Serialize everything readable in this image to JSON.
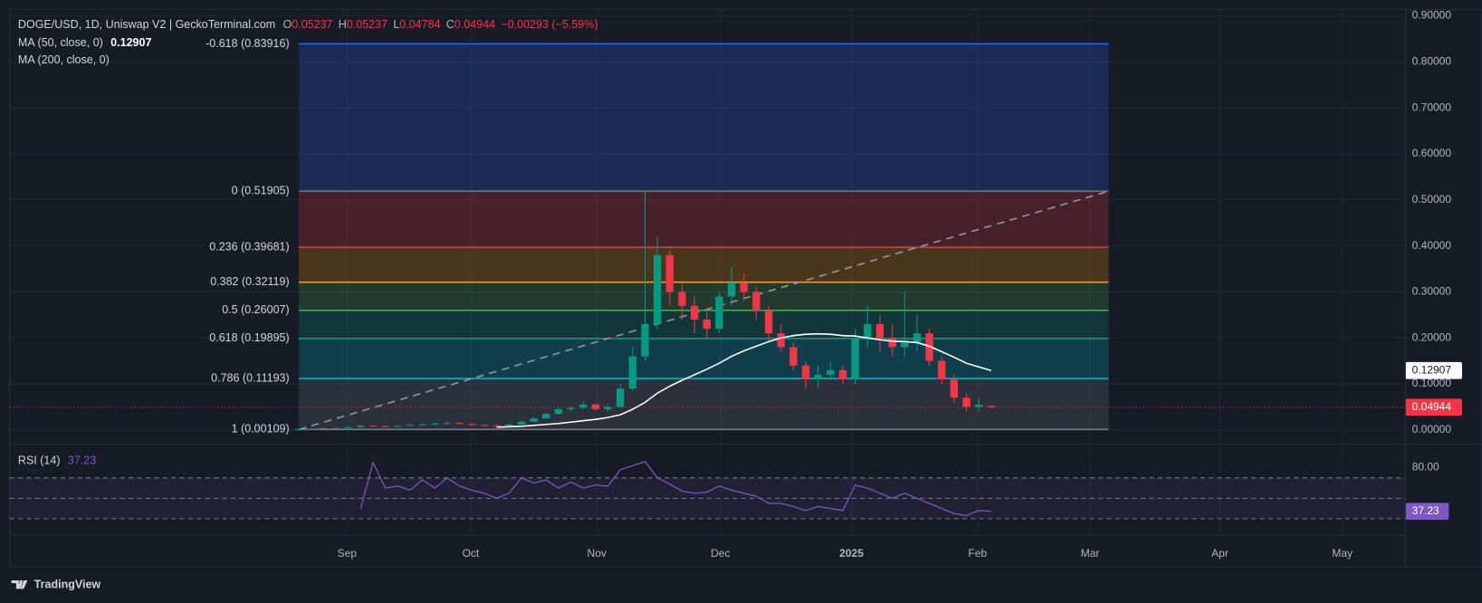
{
  "chart_data": {
    "type": "candlestick",
    "header": {
      "symbol": "DOGE/USD, 1D, Uniswap V2 | GeckoTerminal.com",
      "ohlc": [
        [
          "O",
          "0.05237"
        ],
        [
          "H",
          "0.05237"
        ],
        [
          "L",
          "0.04784"
        ],
        [
          "C",
          "0.04944"
        ]
      ],
      "change": "−0.00293 (−5.59%)"
    },
    "indicators": [
      {
        "name": "MA (50, close, 0)",
        "value": "0.12907"
      },
      {
        "name": "MA (200, close, 0)"
      }
    ],
    "colors": {
      "up": "#089981",
      "down": "#f23645",
      "ma": "#ffffff",
      "rsi": "#7e57c2"
    },
    "xlim": [
      -23.4,
      89.5
    ],
    "xticks": [
      {
        "value": 3.9,
        "label": "Sep"
      },
      {
        "value": 13.9,
        "label": "Oct"
      },
      {
        "value": 24.1,
        "label": "Nov"
      },
      {
        "value": 34.1,
        "label": "Dec"
      },
      {
        "value": 44.7,
        "label": "2025"
      },
      {
        "value": 54.9,
        "label": "Feb"
      },
      {
        "value": 64,
        "label": "Mar"
      },
      {
        "value": 74.5,
        "label": "Apr"
      },
      {
        "value": 84.4,
        "label": "May"
      }
    ],
    "ylim": [
      -0.031,
      0.914
    ],
    "yticks": [
      {
        "value": 0,
        "label": "0.00000"
      },
      {
        "value": 0.1,
        "label": "0.10000"
      },
      {
        "value": 0.2,
        "label": "0.20000"
      },
      {
        "value": 0.3,
        "label": "0.30000"
      },
      {
        "value": 0.4,
        "label": "0.40000"
      },
      {
        "value": 0.5,
        "label": "0.50000"
      },
      {
        "value": 0.6,
        "label": "0.60000"
      },
      {
        "value": 0.7,
        "label": "0.70000"
      },
      {
        "value": 0.8,
        "label": "0.80000"
      },
      {
        "value": 0.9,
        "label": "0.90000"
      }
    ],
    "grid": true,
    "open": [
      0.001,
      0.002,
      0.003,
      0.004,
      0.004,
      0.006,
      0.009,
      0.008,
      0.007,
      0.009,
      0.011,
      0.012,
      0.014,
      0.015,
      0.013,
      0.011,
      0.01,
      0.009,
      0.012,
      0.018,
      0.025,
      0.035,
      0.045,
      0.048,
      0.055,
      0.045,
      0.05,
      0.09,
      0.16,
      0.23,
      0.38,
      0.3,
      0.27,
      0.24,
      0.22,
      0.29,
      0.32,
      0.3,
      0.26,
      0.21,
      0.18,
      0.14,
      0.11,
      0.12,
      0.13,
      0.11,
      0.2,
      0.23,
      0.2,
      0.18,
      0.19,
      0.21,
      0.15,
      0.11,
      0.07,
      0.05,
      0.05237
    ],
    "high": [
      0.003,
      0.004,
      0.005,
      0.005,
      0.007,
      0.012,
      0.011,
      0.009,
      0.011,
      0.013,
      0.014,
      0.016,
      0.02,
      0.017,
      0.014,
      0.012,
      0.011,
      0.013,
      0.02,
      0.028,
      0.038,
      0.048,
      0.052,
      0.062,
      0.058,
      0.055,
      0.1,
      0.18,
      0.519,
      0.42,
      0.39,
      0.32,
      0.29,
      0.26,
      0.3,
      0.355,
      0.34,
      0.31,
      0.27,
      0.23,
      0.19,
      0.15,
      0.14,
      0.15,
      0.14,
      0.22,
      0.27,
      0.25,
      0.23,
      0.3,
      0.25,
      0.22,
      0.16,
      0.12,
      0.08,
      0.07,
      0.05237
    ],
    "low": [
      0.001,
      0.002,
      0.002,
      0.003,
      0.004,
      0.005,
      0.007,
      0.006,
      0.006,
      0.008,
      0.01,
      0.011,
      0.013,
      0.012,
      0.01,
      0.009,
      0.008,
      0.008,
      0.011,
      0.017,
      0.024,
      0.033,
      0.04,
      0.045,
      0.042,
      0.04,
      0.048,
      0.085,
      0.15,
      0.22,
      0.27,
      0.24,
      0.21,
      0.2,
      0.21,
      0.27,
      0.28,
      0.24,
      0.19,
      0.17,
      0.13,
      0.09,
      0.09,
      0.11,
      0.1,
      0.1,
      0.18,
      0.17,
      0.16,
      0.16,
      0.17,
      0.14,
      0.1,
      0.06,
      0.04,
      0.04,
      0.04784
    ],
    "close": [
      0.002,
      0.003,
      0.004,
      0.004,
      0.006,
      0.009,
      0.008,
      0.007,
      0.009,
      0.011,
      0.012,
      0.014,
      0.015,
      0.013,
      0.011,
      0.01,
      0.009,
      0.012,
      0.018,
      0.025,
      0.035,
      0.045,
      0.048,
      0.055,
      0.045,
      0.05,
      0.09,
      0.16,
      0.23,
      0.38,
      0.3,
      0.27,
      0.24,
      0.22,
      0.29,
      0.32,
      0.3,
      0.26,
      0.21,
      0.18,
      0.14,
      0.11,
      0.12,
      0.13,
      0.11,
      0.2,
      0.23,
      0.2,
      0.18,
      0.19,
      0.21,
      0.15,
      0.11,
      0.07,
      0.05,
      0.055,
      0.04944
    ],
    "ma": [
      null,
      null,
      null,
      null,
      null,
      null,
      null,
      null,
      null,
      null,
      null,
      null,
      null,
      null,
      null,
      null,
      0.006,
      0.007,
      0.008,
      0.01,
      0.012,
      0.014,
      0.017,
      0.02,
      0.023,
      0.027,
      0.033,
      0.045,
      0.06,
      0.08,
      0.095,
      0.108,
      0.12,
      0.132,
      0.145,
      0.16,
      0.172,
      0.182,
      0.192,
      0.2,
      0.205,
      0.208,
      0.209,
      0.208,
      0.205,
      0.204,
      0.2,
      0.196,
      0.193,
      0.192,
      0.19,
      0.182,
      0.17,
      0.158,
      0.145,
      0.137,
      0.12907
    ],
    "ma_label": {
      "value": 0.12907,
      "label": "0.12907"
    },
    "last_price": {
      "value": 0.04944,
      "label": "0.04944"
    },
    "fib": {
      "xlim": [
        0,
        65.5
      ],
      "levels": [
        {
          "label": "-0.618 (0.83916)",
          "value": 0.83916,
          "color": "#2962ff"
        },
        {
          "label": "0 (0.51905)",
          "value": 0.51905,
          "color": "#787b86"
        },
        {
          "label": "0.236 (0.39681)",
          "value": 0.39681,
          "color": "#f23645"
        },
        {
          "label": "0.382 (0.32119)",
          "value": 0.32119,
          "color": "#ff9800"
        },
        {
          "label": "0.5 (0.26007)",
          "value": 0.26007,
          "color": "#4caf50"
        },
        {
          "label": "0.618 (0.19895)",
          "value": 0.19895,
          "color": "#089981"
        },
        {
          "label": "0.786 (0.11193)",
          "value": 0.11193,
          "color": "#00bcd4"
        },
        {
          "label": "1 (0.00109)",
          "value": 0.00109,
          "color": "#787b86"
        }
      ]
    },
    "rsi": {
      "name": "RSI (14)",
      "value_label": "37.23",
      "ylim": [
        15,
        103
      ],
      "yticks": [
        {
          "value": 80,
          "label": "80.00"
        }
      ],
      "bands": [
        70,
        50,
        30
      ],
      "values": [
        null,
        null,
        null,
        null,
        null,
        40,
        85,
        60,
        62,
        58,
        68,
        60,
        70,
        62,
        58,
        55,
        50,
        55,
        70,
        65,
        68,
        60,
        66,
        60,
        63,
        62,
        78,
        82,
        86,
        70,
        64,
        57,
        55,
        56,
        62,
        58,
        55,
        52,
        45,
        45,
        42,
        38,
        42,
        40,
        38,
        63,
        60,
        55,
        50,
        55,
        50,
        45,
        40,
        35,
        33,
        38,
        37.23
      ]
    },
    "footer": "TradingView"
  }
}
